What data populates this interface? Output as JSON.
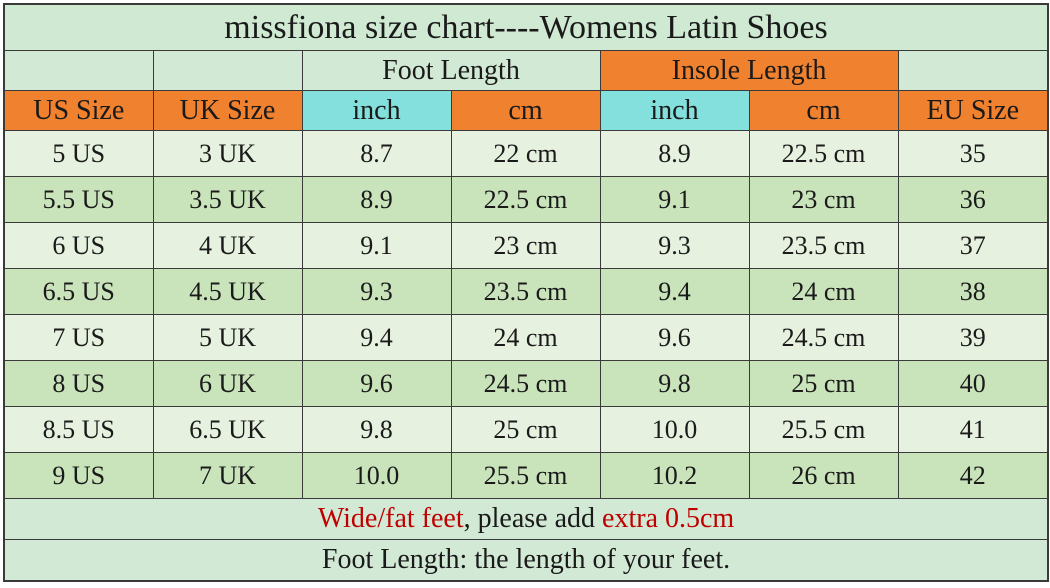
{
  "title": "missfiona size chart----Womens Latin Shoes",
  "group_headers": [
    "Foot Length",
    "Insole Length"
  ],
  "columns": [
    "US Size",
    "UK Size",
    "inch",
    "cm",
    "inch",
    "cm",
    "EU Size"
  ],
  "rows": [
    [
      "5 US",
      "3 UK",
      "8.7",
      "22 cm",
      "8.9",
      "22.5 cm",
      "35"
    ],
    [
      "5.5 US",
      "3.5 UK",
      "8.9",
      "22.5 cm",
      "9.1",
      "23 cm",
      "36"
    ],
    [
      "6 US",
      "4 UK",
      "9.1",
      "23 cm",
      "9.3",
      "23.5 cm",
      "37"
    ],
    [
      "6.5 US",
      "4.5 UK",
      "9.3",
      "23.5 cm",
      "9.4",
      "24 cm",
      "38"
    ],
    [
      "7 US",
      "5 UK",
      "9.4",
      "24 cm",
      "9.6",
      "24.5 cm",
      "39"
    ],
    [
      "8 US",
      "6 UK",
      "9.6",
      "24.5 cm",
      "9.8",
      "25 cm",
      "40"
    ],
    [
      "8.5 US",
      "6.5 UK",
      "9.8",
      "25 cm",
      "10.0",
      "25.5 cm",
      "41"
    ],
    [
      "9 US",
      "7 UK",
      "10.0",
      "25.5 cm",
      "10.2",
      "26 cm",
      "42"
    ]
  ],
  "notes": [
    [
      "Wide/fat feet",
      ", please add ",
      "extra 0.5cm"
    ],
    [
      "Foot Length: the length of your feet."
    ]
  ]
}
